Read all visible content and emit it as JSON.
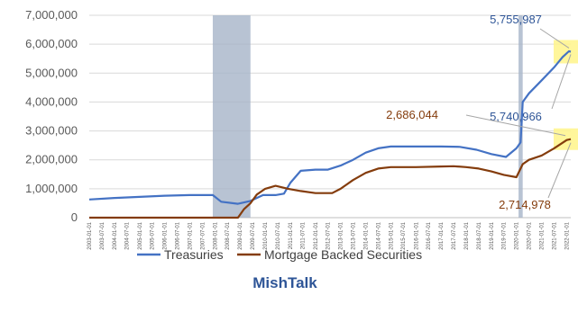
{
  "chart_data": {
    "type": "line",
    "title": "",
    "xlabel": "",
    "ylabel": "",
    "ylim": [
      0,
      7000000
    ],
    "yticks": [
      0,
      1000000,
      2000000,
      3000000,
      4000000,
      5000000,
      6000000,
      7000000
    ],
    "ytick_labels": [
      "0",
      "1,000,000",
      "2,000,000",
      "3,000,000",
      "4,000,000",
      "5,000,000",
      "6,000,000",
      "7,000,000"
    ],
    "x_ticks": [
      "2003-01-01",
      "2003-07-01",
      "2004-01-01",
      "2004-07-01",
      "2005-01-01",
      "2005-07-01",
      "2006-01-01",
      "2006-07-01",
      "2007-01-01",
      "2007-07-01",
      "2008-01-01",
      "2008-07-01",
      "2009-01-01",
      "2009-07-01",
      "2010-01-01",
      "2010-07-01",
      "2011-01-01",
      "2011-07-01",
      "2012-01-01",
      "2012-07-01",
      "2013-01-01",
      "2013-07-01",
      "2014-01-01",
      "2014-07-01",
      "2015-01-01",
      "2015-07-01",
      "2016-01-01",
      "2016-07-01",
      "2017-01-01",
      "2017-07-01",
      "2018-01-01",
      "2018-07-01",
      "2019-01-01",
      "2019-07-01",
      "2020-01-01",
      "2020-07-01",
      "2021-01-01",
      "2021-07-01",
      "2022-01-01"
    ],
    "x_range": [
      "2003-01-01",
      "2022-03-01"
    ],
    "grid": true,
    "legend_position": "bottom",
    "recession_bands": [
      {
        "start": "2007-12-01",
        "end": "2009-06-01"
      },
      {
        "start": "2020-02-01",
        "end": "2020-04-01"
      }
    ],
    "series": [
      {
        "name": "Treasuries",
        "color": "#4472c4",
        "points": [
          [
            "2003-01-01",
            630000
          ],
          [
            "2004-01-01",
            680000
          ],
          [
            "2005-01-01",
            720000
          ],
          [
            "2006-01-01",
            760000
          ],
          [
            "2007-01-01",
            780000
          ],
          [
            "2007-12-01",
            780000
          ],
          [
            "2008-04-01",
            550000
          ],
          [
            "2008-12-01",
            480000
          ],
          [
            "2009-06-01",
            580000
          ],
          [
            "2009-12-01",
            780000
          ],
          [
            "2010-06-01",
            780000
          ],
          [
            "2010-10-01",
            830000
          ],
          [
            "2011-01-01",
            1200000
          ],
          [
            "2011-06-01",
            1620000
          ],
          [
            "2012-01-01",
            1660000
          ],
          [
            "2012-07-01",
            1660000
          ],
          [
            "2013-01-01",
            1800000
          ],
          [
            "2013-07-01",
            2000000
          ],
          [
            "2014-01-01",
            2250000
          ],
          [
            "2014-07-01",
            2400000
          ],
          [
            "2015-01-01",
            2460000
          ],
          [
            "2016-01-01",
            2460000
          ],
          [
            "2017-01-01",
            2460000
          ],
          [
            "2017-10-01",
            2450000
          ],
          [
            "2018-06-01",
            2350000
          ],
          [
            "2019-01-01",
            2200000
          ],
          [
            "2019-08-01",
            2100000
          ],
          [
            "2020-01-01",
            2400000
          ],
          [
            "2020-03-01",
            2600000
          ],
          [
            "2020-04-01",
            4000000
          ],
          [
            "2020-07-01",
            4300000
          ],
          [
            "2021-01-01",
            4750000
          ],
          [
            "2021-07-01",
            5200000
          ],
          [
            "2021-11-01",
            5550000
          ],
          [
            "2022-02-01",
            5755987
          ],
          [
            "2022-03-01",
            5740966
          ]
        ]
      },
      {
        "name": "Mortgage Backed Securities",
        "color": "#843c0c",
        "points": [
          [
            "2003-01-01",
            0
          ],
          [
            "2008-12-01",
            0
          ],
          [
            "2009-03-01",
            300000
          ],
          [
            "2009-06-01",
            500000
          ],
          [
            "2009-09-01",
            800000
          ],
          [
            "2010-01-01",
            1000000
          ],
          [
            "2010-06-01",
            1100000
          ],
          [
            "2010-12-01",
            1000000
          ],
          [
            "2011-06-01",
            920000
          ],
          [
            "2012-01-01",
            850000
          ],
          [
            "2012-09-01",
            850000
          ],
          [
            "2013-01-01",
            1000000
          ],
          [
            "2013-07-01",
            1300000
          ],
          [
            "2014-01-01",
            1550000
          ],
          [
            "2014-07-01",
            1700000
          ],
          [
            "2015-01-01",
            1750000
          ],
          [
            "2016-01-01",
            1750000
          ],
          [
            "2017-01-01",
            1770000
          ],
          [
            "2017-07-01",
            1780000
          ],
          [
            "2018-01-01",
            1750000
          ],
          [
            "2018-07-01",
            1700000
          ],
          [
            "2019-01-01",
            1600000
          ],
          [
            "2019-07-01",
            1480000
          ],
          [
            "2020-01-01",
            1400000
          ],
          [
            "2020-04-01",
            1850000
          ],
          [
            "2020-07-01",
            2000000
          ],
          [
            "2021-01-01",
            2150000
          ],
          [
            "2021-07-01",
            2400000
          ],
          [
            "2022-01-01",
            2686044
          ],
          [
            "2022-03-01",
            2714978
          ]
        ]
      }
    ],
    "annotations": [
      {
        "text": "5,755,987",
        "series": "Treasuries",
        "color": "#2e5597"
      },
      {
        "text": "5,740,966",
        "series": "Treasuries",
        "color": "#2e5597"
      },
      {
        "text": "2,686,044",
        "series": "Mortgage Backed Securities",
        "color": "#843c0c"
      },
      {
        "text": "2,714,978",
        "series": "Mortgage Backed Securities",
        "color": "#843c0c"
      }
    ]
  },
  "legend": [
    {
      "label": "Treasuries",
      "color": "#4472c4"
    },
    {
      "label": "Mortgage Backed Securities",
      "color": "#843c0c"
    }
  ],
  "brand": "MishTalk"
}
